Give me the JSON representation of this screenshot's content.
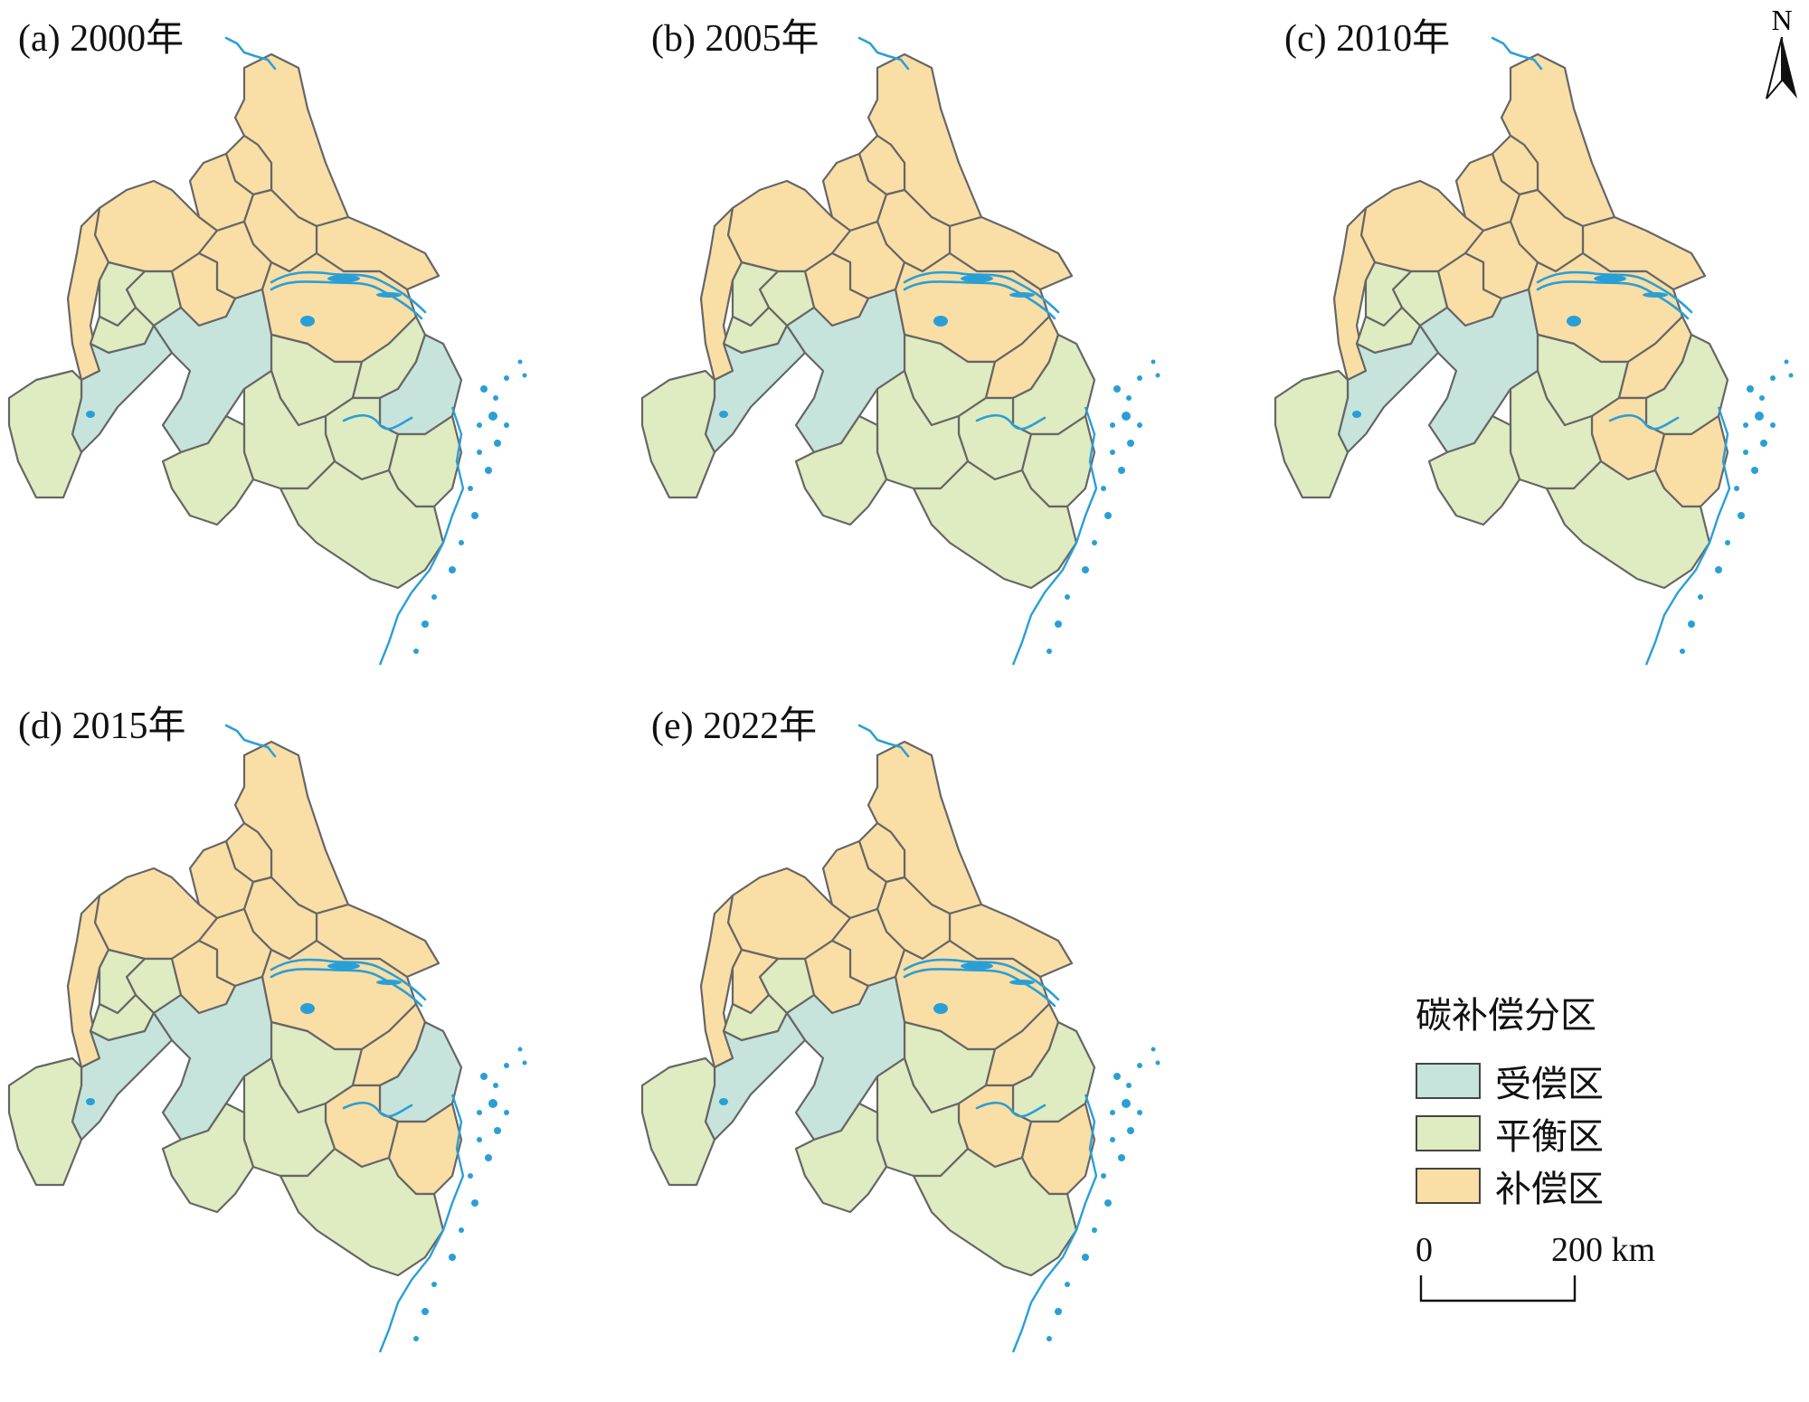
{
  "panels": [
    {
      "label": "(a) 2000年",
      "zones": {
        "r1": "C",
        "r2": "C",
        "r3": "C",
        "r4": "C",
        "r5": "C",
        "r6": "C",
        "r7": "C",
        "r8": "C",
        "r9": "C",
        "r10": "C",
        "r11": "B",
        "r12": "B",
        "r13": "B",
        "r14": "R",
        "r15": "B",
        "r16": "B",
        "r17": "R",
        "r18": "R",
        "r19": "B",
        "r20": "B",
        "r21": "B",
        "r22": "B",
        "r23": "B",
        "r24": "B"
      }
    },
    {
      "label": "(b) 2005年",
      "zones": {
        "r1": "C",
        "r2": "C",
        "r3": "C",
        "r4": "C",
        "r5": "C",
        "r6": "C",
        "r7": "C",
        "r8": "C",
        "r9": "C",
        "r10": "C",
        "r11": "B",
        "r12": "B",
        "r13": "B",
        "r14": "R",
        "r15": "C",
        "r16": "B",
        "r17": "R",
        "r18": "B",
        "r19": "B",
        "r20": "B",
        "r21": "B",
        "r22": "B",
        "r23": "B",
        "r24": "B"
      }
    },
    {
      "label": "(c) 2010年",
      "zones": {
        "r1": "C",
        "r2": "C",
        "r3": "C",
        "r4": "C",
        "r5": "C",
        "r6": "C",
        "r7": "C",
        "r8": "C",
        "r9": "C",
        "r10": "C",
        "r11": "B",
        "r12": "B",
        "r13": "B",
        "r14": "R",
        "r15": "C",
        "r16": "B",
        "r17": "R",
        "r18": "B",
        "r19": "C",
        "r20": "B",
        "r21": "B",
        "r22": "C",
        "r23": "B",
        "r24": "B"
      }
    },
    {
      "label": "(d) 2015年",
      "zones": {
        "r1": "C",
        "r2": "C",
        "r3": "C",
        "r4": "C",
        "r5": "C",
        "r6": "C",
        "r7": "C",
        "r8": "C",
        "r9": "C",
        "r10": "C",
        "r11": "B",
        "r12": "B",
        "r13": "B",
        "r14": "R",
        "r15": "C",
        "r16": "B",
        "r17": "R",
        "r18": "R",
        "r19": "C",
        "r20": "B",
        "r21": "B",
        "r22": "C",
        "r23": "B",
        "r24": "B"
      }
    },
    {
      "label": "(e) 2022年",
      "zones": {
        "r1": "C",
        "r2": "C",
        "r3": "C",
        "r4": "C",
        "r5": "C",
        "r6": "C",
        "r7": "C",
        "r8": "C",
        "r9": "C",
        "r10": "C",
        "r11": "B",
        "r12": "C",
        "r13": "B",
        "r14": "R",
        "r15": "C",
        "r16": "B",
        "r17": "R",
        "r18": "B",
        "r19": "C",
        "r20": "B",
        "r21": "B",
        "r22": "C",
        "r23": "B",
        "r24": "B"
      }
    }
  ],
  "legend": {
    "title": "碳补偿分区",
    "items": [
      {
        "code": "R",
        "label": "受偿区",
        "color": "#c6e4dc"
      },
      {
        "code": "B",
        "label": "平衡区",
        "color": "#dfebc0"
      },
      {
        "code": "C",
        "label": "补偿区",
        "color": "#f9dea6"
      }
    ]
  },
  "colors": {
    "boundary": "#666666",
    "water": "#2a9fd6"
  },
  "scalebar": {
    "start": "0",
    "end": "200 km"
  },
  "north_arrow": {
    "label": "N",
    "icon": "north-arrow-icon"
  }
}
